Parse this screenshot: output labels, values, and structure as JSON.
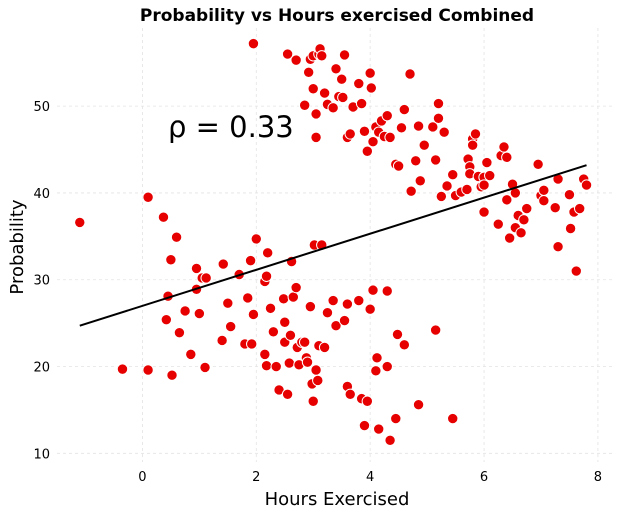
{
  "chart_data": {
    "type": "scatter",
    "title": "Probability vs Hours exercised Combined",
    "xlabel": "Hours Exercised",
    "ylabel": "Probability",
    "xlim": [
      -1.5,
      8.3
    ],
    "ylim": [
      9,
      59
    ],
    "xticks": [
      0,
      2,
      4,
      6,
      8
    ],
    "yticks": [
      10,
      20,
      30,
      40,
      50
    ],
    "grid": true,
    "annotation": "ρ = 0.33",
    "point_color": "#e60000",
    "line_color": "#000000",
    "trendline": {
      "x": [
        -1.1,
        7.8
      ],
      "y": [
        24.7,
        43.2
      ]
    },
    "points": [
      [
        -1.1,
        36.6
      ],
      [
        -0.35,
        19.7
      ],
      [
        0.1,
        19.6
      ],
      [
        0.1,
        39.5
      ],
      [
        0.37,
        37.2
      ],
      [
        0.45,
        28.1
      ],
      [
        0.42,
        25.4
      ],
      [
        0.5,
        32.3
      ],
      [
        0.52,
        19.0
      ],
      [
        0.6,
        34.9
      ],
      [
        0.65,
        23.9
      ],
      [
        0.75,
        26.4
      ],
      [
        0.85,
        21.4
      ],
      [
        0.95,
        31.3
      ],
      [
        0.95,
        28.9
      ],
      [
        1.0,
        26.1
      ],
      [
        1.05,
        30.2
      ],
      [
        1.1,
        19.9
      ],
      [
        1.12,
        30.2
      ],
      [
        1.4,
        23.0
      ],
      [
        1.42,
        31.8
      ],
      [
        1.5,
        27.3
      ],
      [
        1.55,
        24.6
      ],
      [
        1.7,
        30.6
      ],
      [
        1.8,
        22.6
      ],
      [
        1.85,
        27.9
      ],
      [
        1.9,
        32.2
      ],
      [
        1.92,
        22.6
      ],
      [
        1.95,
        26.0
      ],
      [
        2.0,
        34.7
      ],
      [
        2.15,
        29.8
      ],
      [
        2.15,
        21.4
      ],
      [
        2.18,
        30.4
      ],
      [
        2.18,
        20.1
      ],
      [
        2.2,
        33.1
      ],
      [
        2.25,
        26.7
      ],
      [
        2.3,
        24.0
      ],
      [
        2.35,
        20.0
      ],
      [
        2.4,
        17.3
      ],
      [
        2.48,
        27.8
      ],
      [
        2.5,
        25.1
      ],
      [
        2.5,
        22.8
      ],
      [
        2.55,
        16.8
      ],
      [
        2.58,
        20.4
      ],
      [
        2.6,
        23.6
      ],
      [
        2.62,
        32.1
      ],
      [
        2.65,
        28.0
      ],
      [
        2.7,
        29.1
      ],
      [
        2.72,
        22.2
      ],
      [
        2.75,
        20.2
      ],
      [
        2.8,
        22.8
      ],
      [
        2.85,
        22.8
      ],
      [
        2.88,
        21.0
      ],
      [
        2.9,
        20.5
      ],
      [
        2.95,
        26.9
      ],
      [
        2.98,
        18.0
      ],
      [
        3.0,
        16.0
      ],
      [
        3.02,
        34.0
      ],
      [
        3.05,
        19.6
      ],
      [
        3.08,
        18.4
      ],
      [
        3.1,
        22.4
      ],
      [
        3.15,
        34.0
      ],
      [
        3.2,
        22.2
      ],
      [
        3.25,
        26.2
      ],
      [
        3.35,
        27.6
      ],
      [
        3.4,
        24.7
      ],
      [
        3.55,
        25.3
      ],
      [
        3.6,
        27.2
      ],
      [
        3.6,
        17.7
      ],
      [
        3.65,
        16.8
      ],
      [
        3.8,
        27.6
      ],
      [
        3.85,
        16.3
      ],
      [
        3.9,
        13.2
      ],
      [
        3.95,
        16.0
      ],
      [
        4.0,
        26.6
      ],
      [
        4.05,
        28.8
      ],
      [
        4.1,
        19.5
      ],
      [
        4.12,
        21.0
      ],
      [
        4.15,
        12.8
      ],
      [
        4.3,
        20.0
      ],
      [
        4.3,
        28.7
      ],
      [
        4.35,
        11.5
      ],
      [
        4.45,
        14.0
      ],
      [
        4.48,
        23.7
      ],
      [
        4.6,
        22.5
      ],
      [
        4.85,
        15.6
      ],
      [
        5.15,
        24.2
      ],
      [
        5.45,
        14.0
      ],
      [
        2.55,
        56.0
      ],
      [
        2.7,
        55.3
      ],
      [
        1.95,
        57.2
      ],
      [
        2.85,
        50.1
      ],
      [
        2.92,
        53.9
      ],
      [
        2.95,
        55.4
      ],
      [
        3.0,
        55.8
      ],
      [
        3.0,
        52.0
      ],
      [
        3.05,
        49.1
      ],
      [
        3.05,
        46.4
      ],
      [
        3.1,
        56.0
      ],
      [
        3.12,
        56.6
      ],
      [
        3.15,
        55.8
      ],
      [
        3.2,
        51.5
      ],
      [
        3.25,
        50.2
      ],
      [
        3.35,
        49.8
      ],
      [
        3.4,
        54.3
      ],
      [
        3.45,
        51.1
      ],
      [
        3.5,
        53.1
      ],
      [
        3.52,
        51.0
      ],
      [
        3.55,
        55.9
      ],
      [
        3.6,
        46.4
      ],
      [
        3.65,
        46.8
      ],
      [
        3.7,
        49.9
      ],
      [
        3.8,
        52.6
      ],
      [
        3.85,
        50.3
      ],
      [
        3.9,
        47.1
      ],
      [
        3.95,
        44.8
      ],
      [
        4.0,
        53.8
      ],
      [
        4.02,
        52.1
      ],
      [
        4.05,
        45.9
      ],
      [
        4.1,
        47.6
      ],
      [
        4.15,
        47.0
      ],
      [
        4.2,
        48.3
      ],
      [
        4.25,
        46.5
      ],
      [
        4.3,
        48.9
      ],
      [
        4.35,
        46.4
      ],
      [
        4.45,
        43.3
      ],
      [
        4.5,
        43.1
      ],
      [
        4.55,
        47.5
      ],
      [
        4.6,
        49.6
      ],
      [
        4.7,
        53.7
      ],
      [
        4.72,
        40.2
      ],
      [
        4.8,
        43.7
      ],
      [
        4.85,
        47.7
      ],
      [
        4.88,
        41.4
      ],
      [
        4.95,
        45.5
      ],
      [
        5.1,
        47.6
      ],
      [
        5.15,
        43.8
      ],
      [
        5.2,
        50.3
      ],
      [
        5.2,
        48.6
      ],
      [
        5.25,
        39.6
      ],
      [
        5.3,
        47.0
      ],
      [
        5.35,
        40.8
      ],
      [
        5.45,
        42.1
      ],
      [
        5.5,
        39.7
      ],
      [
        5.6,
        40.1
      ],
      [
        5.7,
        40.4
      ],
      [
        5.72,
        43.9
      ],
      [
        5.75,
        43.0
      ],
      [
        5.75,
        42.2
      ],
      [
        5.8,
        46.2
      ],
      [
        5.8,
        45.5
      ],
      [
        5.85,
        46.8
      ],
      [
        5.9,
        41.9
      ],
      [
        5.95,
        40.7
      ],
      [
        6.0,
        41.8
      ],
      [
        6.0,
        40.9
      ],
      [
        6.0,
        37.8
      ],
      [
        6.05,
        43.5
      ],
      [
        6.1,
        42.0
      ],
      [
        6.25,
        36.4
      ],
      [
        6.3,
        44.3
      ],
      [
        6.4,
        44.1
      ],
      [
        6.35,
        45.3
      ],
      [
        6.4,
        39.2
      ],
      [
        6.45,
        34.8
      ],
      [
        6.5,
        41.0
      ],
      [
        6.55,
        40.0
      ],
      [
        6.55,
        36.0
      ],
      [
        6.6,
        37.4
      ],
      [
        6.65,
        35.4
      ],
      [
        6.7,
        36.9
      ],
      [
        6.75,
        38.2
      ],
      [
        6.95,
        43.3
      ],
      [
        7.0,
        39.7
      ],
      [
        7.05,
        40.3
      ],
      [
        7.05,
        39.1
      ],
      [
        7.25,
        38.3
      ],
      [
        7.3,
        41.6
      ],
      [
        7.3,
        33.8
      ],
      [
        7.5,
        39.8
      ],
      [
        7.52,
        35.9
      ],
      [
        7.58,
        37.8
      ],
      [
        7.62,
        31.0
      ],
      [
        7.68,
        38.2
      ],
      [
        7.75,
        41.6
      ],
      [
        7.8,
        40.9
      ]
    ]
  }
}
